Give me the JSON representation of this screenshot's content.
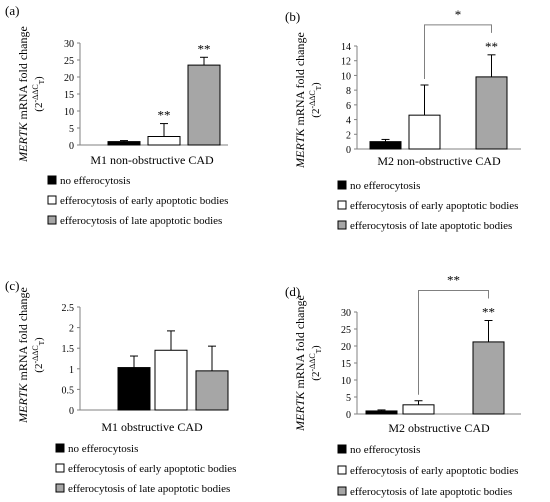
{
  "legend_items": [
    {
      "label": "no efferocytosis",
      "color": "#000000"
    },
    {
      "label": "efferocytosis of early apoptotic bodies",
      "color": "#ffffff"
    },
    {
      "label": "efferocytosis of late apoptotic bodies",
      "color": "#a6a6a6"
    }
  ],
  "ylabel_italic": "MERTK",
  "ylabel_rest": " mRNA fold change",
  "ylabel_formula": "(2",
  "ylabel_formula_sup": "-ΔΔC",
  "ylabel_formula_sub": "T",
  "ylabel_formula_close": ")",
  "chart_data": [
    {
      "panel": "(a)",
      "type": "bar",
      "xlabel": "M1 non-obstructive CAD",
      "ylim": [
        0,
        30
      ],
      "ticks": [
        0,
        5,
        10,
        15,
        20,
        25,
        30
      ],
      "values": [
        1.0,
        2.5,
        23.5
      ],
      "errors": [
        0.3,
        3.8,
        2.3
      ],
      "annotations": [
        {
          "bar": 1,
          "text": "**"
        },
        {
          "bar": 2,
          "text": "**"
        }
      ],
      "bracket": null
    },
    {
      "panel": "(b)",
      "type": "bar",
      "xlabel": "M2 non-obstructive CAD",
      "ylim": [
        0,
        14
      ],
      "ticks": [
        0,
        2,
        4,
        6,
        8,
        10,
        12,
        14
      ],
      "values": [
        1.0,
        4.6,
        9.8
      ],
      "errors": [
        0.3,
        4.1,
        3.0
      ],
      "annotations": [
        {
          "bar": 2,
          "text": "**"
        }
      ],
      "bracket": {
        "from": 1,
        "to": 2,
        "text": "*"
      }
    },
    {
      "panel": "(c)",
      "type": "bar",
      "xlabel": "M1 obstructive CAD",
      "ylim": [
        0,
        2.5
      ],
      "ticks": [
        0,
        0.5,
        1,
        1.5,
        2,
        2.5
      ],
      "values": [
        1.03,
        1.45,
        0.95
      ],
      "errors": [
        0.28,
        0.47,
        0.6
      ],
      "annotations": [],
      "bracket": null
    },
    {
      "panel": "(d)",
      "type": "bar",
      "xlabel": "M2 obstructive CAD",
      "ylim": [
        0,
        30
      ],
      "ticks": [
        0,
        5,
        10,
        15,
        20,
        25,
        30
      ],
      "values": [
        0.9,
        2.7,
        21.2
      ],
      "errors": [
        0.3,
        1.2,
        6.3
      ],
      "annotations": [
        {
          "bar": 2,
          "text": "**"
        }
      ],
      "bracket": {
        "from": 1,
        "to": 2,
        "text": "**"
      }
    }
  ]
}
